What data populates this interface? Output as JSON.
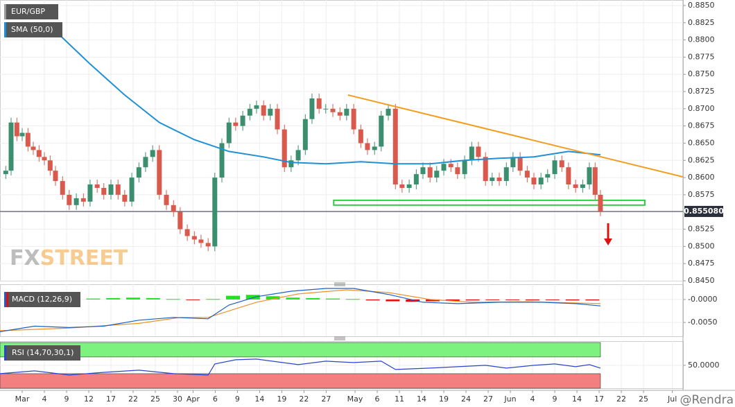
{
  "chart_data": {
    "type": "candlestick",
    "title": "EUR/GBP",
    "xlim": [
      0,
      153.9
    ],
    "xticks": [
      {
        "value": 5,
        "label": "Mar"
      },
      {
        "value": 10,
        "label": "4"
      },
      {
        "value": 15,
        "label": "9"
      },
      {
        "value": 20,
        "label": "12"
      },
      {
        "value": 25,
        "label": "17"
      },
      {
        "value": 30,
        "label": "22"
      },
      {
        "value": 35,
        "label": "25"
      },
      {
        "value": 40,
        "label": "30"
      },
      {
        "value": 43.5,
        "label": "Apr"
      },
      {
        "value": 48.5,
        "label": "6"
      },
      {
        "value": 53.5,
        "label": "9"
      },
      {
        "value": 58.5,
        "label": "14"
      },
      {
        "value": 63.5,
        "label": "19"
      },
      {
        "value": 68.5,
        "label": "22"
      },
      {
        "value": 73.5,
        "label": "27"
      },
      {
        "value": 80,
        "label": "May"
      },
      {
        "value": 85,
        "label": "6"
      },
      {
        "value": 90,
        "label": "11"
      },
      {
        "value": 95,
        "label": "14"
      },
      {
        "value": 100,
        "label": "19"
      },
      {
        "value": 105,
        "label": "24"
      },
      {
        "value": 110,
        "label": "27"
      },
      {
        "value": 115,
        "label": "Jun"
      },
      {
        "value": 120,
        "label": "4"
      },
      {
        "value": 125,
        "label": "9"
      },
      {
        "value": 130,
        "label": "14"
      },
      {
        "value": 135,
        "label": "17"
      },
      {
        "value": 140,
        "label": "22"
      },
      {
        "value": 145,
        "label": "25"
      },
      {
        "value": 151.5,
        "label": "Jul"
      }
    ],
    "ylim": [
      0.845,
      0.8858
    ],
    "yticks": [
      {
        "value": 0.845,
        "label": "0.8450"
      },
      0.8475,
      {
        "value": 0.85,
        "label": "0.8500"
      },
      0.8525,
      {
        "value": 0.855,
        "label": "0.8550"
      },
      0.8575,
      {
        "value": 0.86,
        "label": "0.8600"
      },
      0.8625,
      {
        "value": 0.865,
        "label": "0.8650"
      },
      0.8675,
      {
        "value": 0.87,
        "label": "0.8700"
      },
      0.8725,
      {
        "value": 0.875,
        "label": "0.8750"
      },
      0.8775,
      {
        "value": 0.88,
        "label": "0.8800"
      },
      0.8825,
      {
        "value": 0.885,
        "label": "0.8850"
      }
    ],
    "grid": true,
    "candles": {
      "up_color": "#3b8f6f",
      "down_color": "#d9594c",
      "x": [
        1.3,
        2.5,
        3.8,
        5,
        6.3,
        7.5,
        8.8,
        10,
        11.3,
        12.5,
        14.1,
        15.6,
        17.2,
        18.8,
        20.3,
        21.9,
        23.4,
        25,
        26.6,
        28.1,
        29.7,
        31.3,
        32.8,
        34.4,
        35.9,
        37.5,
        39.1,
        40.6,
        42.2,
        43.8,
        45.3,
        46.9,
        48.4,
        50,
        51.6,
        53.1,
        54.7,
        56.3,
        57.8,
        59.4,
        60.9,
        62.5,
        64.1,
        65.6,
        67.2,
        68.8,
        70.3,
        71.9,
        73.4,
        75,
        76.6,
        78.1,
        79.7,
        81.3,
        82.8,
        84.4,
        85.9,
        87.5,
        89.1,
        90.6,
        92.2,
        93.8,
        95.3,
        96.9,
        98.4,
        100,
        101.6,
        103.1,
        104.7,
        106.3,
        107.8,
        109.4,
        110.9,
        112.5,
        114.1,
        115.6,
        117.2,
        118.8,
        120.3,
        121.9,
        123.4,
        125,
        126.6,
        128.1,
        129.7,
        131.3,
        132.8,
        134.1,
        135.3
      ],
      "open": [
        0.8605,
        0.861,
        0.868,
        0.866,
        0.8665,
        0.8645,
        0.864,
        0.863,
        0.8625,
        0.861,
        0.8595,
        0.8575,
        0.856,
        0.857,
        0.8565,
        0.859,
        0.8585,
        0.8575,
        0.859,
        0.8575,
        0.8565,
        0.86,
        0.8615,
        0.863,
        0.864,
        0.8575,
        0.856,
        0.855,
        0.8525,
        0.8515,
        0.851,
        0.8505,
        0.85,
        0.86,
        0.865,
        0.868,
        0.8675,
        0.869,
        0.87,
        0.8705,
        0.869,
        0.87,
        0.867,
        0.8615,
        0.8625,
        0.864,
        0.8685,
        0.8715,
        0.87,
        0.87,
        0.8695,
        0.869,
        0.87,
        0.867,
        0.865,
        0.864,
        0.8645,
        0.869,
        0.87,
        0.859,
        0.8585,
        0.859,
        0.8605,
        0.8615,
        0.86,
        0.861,
        0.862,
        0.8615,
        0.8605,
        0.8625,
        0.8645,
        0.863,
        0.8595,
        0.86,
        0.8595,
        0.8615,
        0.863,
        0.861,
        0.86,
        0.859,
        0.86,
        0.8605,
        0.8625,
        0.8615,
        0.859,
        0.8585,
        0.859,
        0.8615,
        0.8575
      ],
      "high": [
        0.8617,
        0.8687,
        0.8687,
        0.8672,
        0.8672,
        0.8652,
        0.8647,
        0.8637,
        0.8632,
        0.8617,
        0.8602,
        0.8582,
        0.8577,
        0.8577,
        0.8597,
        0.8597,
        0.8592,
        0.8597,
        0.8597,
        0.8582,
        0.8607,
        0.8622,
        0.8637,
        0.8647,
        0.8647,
        0.8582,
        0.8567,
        0.8557,
        0.8532,
        0.8522,
        0.8517,
        0.8512,
        0.8607,
        0.8657,
        0.8687,
        0.8687,
        0.8697,
        0.8707,
        0.8712,
        0.8712,
        0.8707,
        0.8707,
        0.8677,
        0.8632,
        0.8647,
        0.8692,
        0.8722,
        0.8722,
        0.8707,
        0.8707,
        0.8702,
        0.8707,
        0.8707,
        0.8677,
        0.8657,
        0.8652,
        0.8697,
        0.8707,
        0.8707,
        0.8597,
        0.8597,
        0.8612,
        0.8622,
        0.8622,
        0.8617,
        0.8627,
        0.8627,
        0.8622,
        0.8632,
        0.8652,
        0.8652,
        0.8637,
        0.8607,
        0.8607,
        0.8622,
        0.8637,
        0.8637,
        0.8617,
        0.8607,
        0.8607,
        0.8612,
        0.8632,
        0.8632,
        0.8622,
        0.8597,
        0.8597,
        0.8622,
        0.8622,
        0.8582
      ],
      "low": [
        0.8598,
        0.8603,
        0.8653,
        0.8653,
        0.8638,
        0.8633,
        0.8623,
        0.8618,
        0.8603,
        0.8588,
        0.8568,
        0.8553,
        0.8553,
        0.8558,
        0.8558,
        0.8578,
        0.8568,
        0.8568,
        0.8568,
        0.8558,
        0.8558,
        0.8593,
        0.8608,
        0.8623,
        0.8568,
        0.8553,
        0.8543,
        0.8518,
        0.8508,
        0.8503,
        0.8498,
        0.8493,
        0.8493,
        0.8593,
        0.8643,
        0.8668,
        0.8668,
        0.8683,
        0.8693,
        0.8683,
        0.8683,
        0.8663,
        0.8608,
        0.8608,
        0.8618,
        0.8633,
        0.8678,
        0.8693,
        0.8693,
        0.8688,
        0.8683,
        0.8683,
        0.8663,
        0.8643,
        0.8633,
        0.8633,
        0.8638,
        0.8683,
        0.8583,
        0.8578,
        0.8578,
        0.8583,
        0.8598,
        0.8593,
        0.8593,
        0.8603,
        0.8608,
        0.8598,
        0.8598,
        0.8618,
        0.8623,
        0.8588,
        0.8588,
        0.8588,
        0.8588,
        0.8608,
        0.8603,
        0.8593,
        0.8583,
        0.8583,
        0.8593,
        0.8598,
        0.8608,
        0.8583,
        0.8578,
        0.8578,
        0.8583,
        0.8568,
        0.8544
      ],
      "close": [
        0.861,
        0.868,
        0.866,
        0.8665,
        0.8645,
        0.864,
        0.863,
        0.8625,
        0.861,
        0.8595,
        0.8575,
        0.856,
        0.857,
        0.8565,
        0.859,
        0.8585,
        0.8575,
        0.859,
        0.8575,
        0.8565,
        0.86,
        0.8615,
        0.863,
        0.864,
        0.8575,
        0.856,
        0.855,
        0.8525,
        0.8515,
        0.851,
        0.8505,
        0.85,
        0.86,
        0.865,
        0.868,
        0.8675,
        0.869,
        0.87,
        0.8705,
        0.869,
        0.87,
        0.867,
        0.8615,
        0.8625,
        0.864,
        0.8685,
        0.8715,
        0.87,
        0.87,
        0.8695,
        0.869,
        0.87,
        0.867,
        0.865,
        0.864,
        0.8645,
        0.869,
        0.87,
        0.859,
        0.8585,
        0.859,
        0.8605,
        0.8615,
        0.86,
        0.861,
        0.862,
        0.8615,
        0.8605,
        0.8625,
        0.8645,
        0.863,
        0.8595,
        0.86,
        0.8595,
        0.8615,
        0.863,
        0.861,
        0.86,
        0.859,
        0.86,
        0.8605,
        0.8625,
        0.8615,
        0.859,
        0.8585,
        0.859,
        0.8615,
        0.8575,
        0.85508
      ]
    },
    "last": {
      "value": 0.85508,
      "label": "0.855080"
    },
    "sma": {
      "label": "SMA (50,0)",
      "color": "#1e90d6",
      "x": [
        13.3,
        20.3,
        28.1,
        35.9,
        43.8,
        51.6,
        59.4,
        65.6,
        73.4,
        81.3,
        89.1,
        96.9,
        104.7,
        112.5,
        120.3,
        128.1,
        135.3
      ],
      "values": [
        0.8808,
        0.8765,
        0.872,
        0.868,
        0.8655,
        0.8638,
        0.863,
        0.8622,
        0.862,
        0.8623,
        0.862,
        0.862,
        0.8625,
        0.8628,
        0.863,
        0.8638,
        0.8633
      ]
    },
    "trendline": {
      "color": "#f39c1e",
      "x": [
        78.4,
        153.9
      ],
      "values": [
        0.872,
        0.8601
      ]
    },
    "support": {
      "color": "#2ecc40",
      "x": [
        75.2,
        145.3
      ],
      "values": [
        0.8567,
        0.856
      ]
    },
    "macd": {
      "label": "MACD (12,26,9)",
      "ylim": [
        -0.008,
        0.0033
      ],
      "yticks": [
        {
          "value": 0,
          "label": "-0.0000"
        },
        {
          "value": -0.005,
          "label": "-0.0050"
        }
      ],
      "histogram": {
        "up_color": "#22e022",
        "down_color": "#e01010",
        "x": [
          3,
          7.5,
          12,
          16.5,
          21,
          25.5,
          30,
          34.5,
          39,
          43.5,
          48,
          52.5,
          57,
          61.5,
          66,
          70.5,
          75,
          79.5,
          84,
          88.5,
          93,
          97.5,
          102,
          106.5,
          111,
          115.5,
          120,
          124.5,
          129,
          133.5
        ],
        "values": [
          0,
          2e-05,
          5e-05,
          0.0001,
          0.0002,
          0.0003,
          0.0004,
          0.0003,
          0.0001,
          -0.0001,
          0.0001,
          0.0008,
          0.001,
          0.0007,
          0.0004,
          0.0003,
          0.0002,
          0.0001,
          -0.0002,
          -0.0004,
          -0.0005,
          -0.0004,
          -0.0003,
          -0.0002,
          -0.0001,
          -0.0001,
          -0.0002,
          -0.0001,
          -0.0002,
          -0.0002
        ]
      },
      "line": {
        "color": "#1f5fbf",
        "x": [
          0,
          7.8,
          15.6,
          23.4,
          31.3,
          39.1,
          46.9,
          51.6,
          57.8,
          65.6,
          73.4,
          79.7,
          87.5,
          95.3,
          103.1,
          112.5,
          121.9,
          129.7,
          135.3
        ],
        "values": [
          -0.007,
          -0.0058,
          -0.0061,
          -0.0058,
          -0.0045,
          -0.0039,
          -0.0042,
          -0.0012,
          0.0006,
          0.0018,
          0.0024,
          0.0024,
          0.0011,
          -0.0006,
          -0.0009,
          -0.0006,
          -0.0006,
          -0.0009,
          -0.0014
        ]
      },
      "signal": {
        "color": "#f0902a",
        "x": [
          0,
          15.6,
          31.3,
          40.6,
          46.9,
          57.8,
          67.2,
          78.1,
          87.5,
          96.9,
          106.3,
          118.8,
          135.3
        ],
        "values": [
          -0.0068,
          -0.0062,
          -0.0052,
          -0.0039,
          -0.0039,
          -0.0006,
          0.0012,
          0.0021,
          0.0015,
          0,
          -0.0006,
          -0.0005,
          -0.0009
        ]
      }
    },
    "rsi": {
      "label": "RSI (14,70,30,1)",
      "ylim": [
        -5,
        108
      ],
      "yticks": [
        {
          "value": 50,
          "label": "50.0000"
        }
      ],
      "overbought": 70,
      "oversold": 30,
      "overbought_color": "#7ef27e",
      "oversold_color": "#f28080",
      "color": "#2a45c8",
      "x": [
        0,
        7.8,
        15.6,
        23.4,
        31.3,
        39.1,
        46.9,
        48.4,
        53.1,
        57.8,
        62.5,
        67.2,
        73.4,
        79.7,
        85.9,
        89.1,
        96.9,
        103.1,
        109.4,
        114.1,
        120.3,
        125,
        129.7,
        132.8,
        135.3
      ],
      "values": [
        30,
        36.7,
        26.7,
        33.3,
        38.3,
        30,
        26.7,
        53.3,
        63.3,
        65,
        58.3,
        51.7,
        60,
        56.7,
        60,
        40,
        43.3,
        46.7,
        50,
        43.3,
        50,
        53.3,
        46.7,
        51.7,
        43.3
      ]
    },
    "watermark": [
      "FX",
      "STREET"
    ],
    "credit": "@Rendra"
  }
}
